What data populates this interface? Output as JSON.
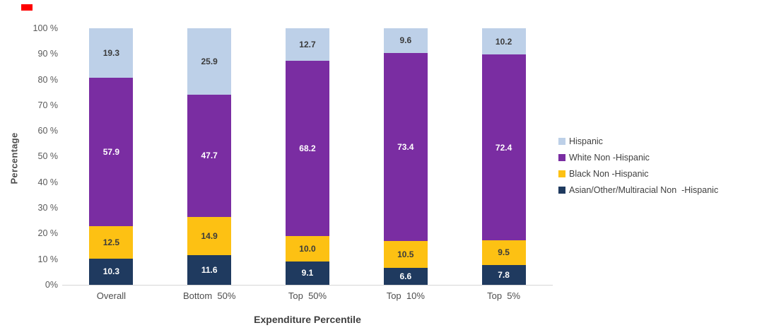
{
  "chart_data": {
    "type": "bar",
    "subtype": "stacked-column",
    "categories": [
      "Overall",
      "Bottom  50%",
      "Top  50%",
      "Top  10%",
      "Top  5%"
    ],
    "series": [
      {
        "name": "Asian/Other/Multiracial Non  -Hispanic",
        "color": "#1f3a5f",
        "label_color": "#ffffff",
        "values": [
          10.3,
          11.6,
          9.1,
          6.6,
          7.8
        ]
      },
      {
        "name": "Black Non -Hispanic",
        "color": "#fdc113",
        "label_color": "#3b3b3b",
        "values": [
          12.5,
          14.9,
          10.0,
          10.5,
          9.5
        ]
      },
      {
        "name": "White Non -Hispanic",
        "color": "#7a2da2",
        "label_color": "#ffffff",
        "values": [
          57.9,
          47.7,
          68.2,
          73.4,
          72.4
        ]
      },
      {
        "name": "Hispanic",
        "color": "#bdd0e8",
        "label_color": "#3b3b3b",
        "values": [
          19.3,
          25.9,
          12.7,
          9.6,
          10.2
        ]
      }
    ],
    "title": "",
    "xlabel": "Expenditure Percentile",
    "ylabel": "Percentage",
    "ylim": [
      0,
      100
    ],
    "yticks": [
      "100 %",
      "90 %",
      "80 %",
      "70 %",
      "60 %",
      "50 %",
      "40 %",
      "30 %",
      "20 %",
      "10 %",
      "0%"
    ],
    "grid": false,
    "legend_position": "right",
    "legend_order_top_to_bottom": [
      "Hispanic",
      "White Non -Hispanic",
      "Black Non -Hispanic",
      "Asian/Other/Multiracial Non  -Hispanic"
    ]
  }
}
